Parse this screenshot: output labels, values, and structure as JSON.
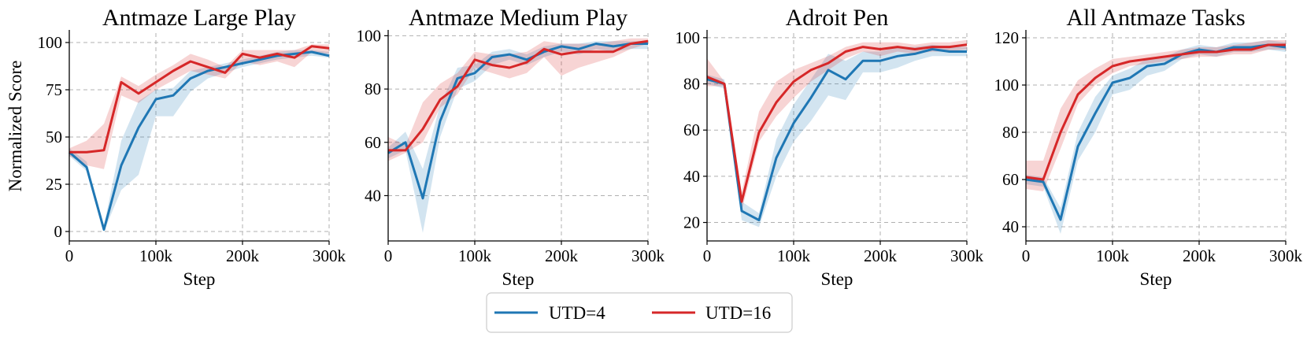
{
  "figure": {
    "ylabel": "Normalized Score",
    "legend": {
      "placement": "bottom-center",
      "items": [
        {
          "name": "UTD=4",
          "color": "#1f77b4"
        },
        {
          "name": "UTD=16",
          "color": "#d62728"
        }
      ]
    }
  },
  "chart_data": [
    {
      "type": "line",
      "title": "Antmaze Large Play",
      "xlabel": "Step",
      "ylabel": "Normalized Score",
      "xlim": [
        0,
        300000
      ],
      "ylim": [
        -5,
        105
      ],
      "xticks": [
        0,
        100000,
        200000,
        300000
      ],
      "xtick_labels": [
        "0",
        "100k",
        "200k",
        "300k"
      ],
      "yticks": [
        0,
        25,
        50,
        75,
        100
      ],
      "ytick_labels": [
        "0",
        "25",
        "50",
        "75",
        "100"
      ],
      "grid": true,
      "x": [
        0,
        20000,
        40000,
        60000,
        80000,
        100000,
        120000,
        140000,
        160000,
        180000,
        200000,
        220000,
        240000,
        260000,
        280000,
        300000
      ],
      "series": [
        {
          "name": "UTD=4",
          "color": "#1f77b4",
          "values": [
            42,
            34,
            1,
            35,
            55,
            70,
            72,
            81,
            85,
            87,
            89,
            91,
            93,
            94,
            95,
            93
          ],
          "lower": [
            40,
            32,
            0,
            22,
            30,
            61,
            61,
            74,
            81,
            84,
            87,
            89,
            91,
            92,
            93,
            92
          ],
          "upper": [
            44,
            37,
            3,
            48,
            69,
            75,
            76,
            85,
            87,
            89,
            91,
            93,
            95,
            96,
            96,
            95
          ]
        },
        {
          "name": "UTD=16",
          "color": "#d62728",
          "values": [
            42,
            42,
            43,
            79,
            73,
            79,
            85,
            90,
            87,
            84,
            94,
            92,
            94,
            92,
            98,
            97
          ],
          "lower": [
            40,
            35,
            33,
            72,
            68,
            75,
            80,
            85,
            83,
            81,
            90,
            88,
            90,
            87,
            95,
            94
          ],
          "upper": [
            44,
            48,
            57,
            82,
            77,
            83,
            88,
            94,
            91,
            87,
            96,
            96,
            96,
            96,
            99,
            99
          ]
        }
      ]
    },
    {
      "type": "line",
      "title": "Antmaze Medium Play",
      "xlabel": "Step",
      "ylabel": "",
      "xlim": [
        0,
        300000
      ],
      "ylim": [
        23,
        101
      ],
      "xticks": [
        0,
        100000,
        200000,
        300000
      ],
      "xtick_labels": [
        "0",
        "100k",
        "200k",
        "300k"
      ],
      "yticks": [
        40,
        60,
        80,
        100
      ],
      "ytick_labels": [
        "40",
        "60",
        "80",
        "100"
      ],
      "grid": true,
      "x": [
        0,
        20000,
        40000,
        60000,
        80000,
        100000,
        120000,
        140000,
        160000,
        180000,
        200000,
        220000,
        240000,
        260000,
        280000,
        300000
      ],
      "series": [
        {
          "name": "UTD=4",
          "color": "#1f77b4",
          "values": [
            56,
            60,
            39,
            68,
            84,
            86,
            92,
            93,
            91,
            94,
            96,
            95,
            97,
            96,
            97,
            97
          ],
          "lower": [
            54,
            57,
            26,
            62,
            80,
            83,
            89,
            91,
            89,
            92,
            94,
            93,
            95,
            94,
            95,
            95
          ],
          "upper": [
            58,
            64,
            50,
            74,
            88,
            89,
            94,
            95,
            93,
            96,
            97,
            97,
            98,
            98,
            98,
            98
          ]
        },
        {
          "name": "UTD=16",
          "color": "#d62728",
          "values": [
            57,
            57,
            65,
            76,
            81,
            91,
            89,
            88,
            90,
            95,
            93,
            94,
            94,
            94,
            97,
            98
          ],
          "lower": [
            53,
            56,
            60,
            73,
            78,
            88,
            86,
            84,
            86,
            92,
            85,
            88,
            90,
            92,
            95,
            97
          ],
          "upper": [
            62,
            59,
            75,
            82,
            86,
            94,
            93,
            93,
            94,
            98,
            97,
            97,
            97,
            98,
            99,
            99
          ]
        }
      ]
    },
    {
      "type": "line",
      "title": "Adroit Pen",
      "xlabel": "Step",
      "ylabel": "",
      "xlim": [
        0,
        300000
      ],
      "ylim": [
        12,
        102
      ],
      "xticks": [
        0,
        100000,
        200000,
        300000
      ],
      "xtick_labels": [
        "0",
        "100k",
        "200k",
        "300k"
      ],
      "yticks": [
        20,
        40,
        60,
        80,
        100
      ],
      "ytick_labels": [
        "20",
        "40",
        "60",
        "80",
        "100"
      ],
      "grid": true,
      "x": [
        0,
        20000,
        40000,
        60000,
        80000,
        100000,
        120000,
        140000,
        160000,
        180000,
        200000,
        220000,
        240000,
        260000,
        280000,
        300000
      ],
      "series": [
        {
          "name": "UTD=4",
          "color": "#1f77b4",
          "values": [
            82,
            80,
            25,
            21,
            48,
            63,
            74,
            86,
            82,
            90,
            90,
            92,
            93,
            95,
            94,
            94
          ],
          "lower": [
            80,
            78,
            21,
            18,
            40,
            55,
            64,
            75,
            73,
            85,
            85,
            87,
            90,
            92,
            92,
            92
          ],
          "upper": [
            84,
            82,
            29,
            24,
            56,
            71,
            82,
            93,
            90,
            94,
            94,
            96,
            96,
            97,
            96,
            96
          ]
        },
        {
          "name": "UTD=16",
          "color": "#d62728",
          "values": [
            83,
            80,
            29,
            59,
            72,
            81,
            86,
            89,
            94,
            96,
            95,
            96,
            95,
            96,
            96,
            97
          ],
          "lower": [
            79,
            79,
            25,
            55,
            66,
            74,
            81,
            86,
            91,
            94,
            92,
            94,
            93,
            94,
            94,
            95
          ],
          "upper": [
            91,
            81,
            33,
            68,
            81,
            86,
            89,
            92,
            96,
            98,
            98,
            98,
            97,
            98,
            98,
            99
          ]
        }
      ]
    },
    {
      "type": "line",
      "title": "All Antmaze Tasks",
      "xlabel": "Step",
      "ylabel": "",
      "xlim": [
        0,
        300000
      ],
      "ylim": [
        34,
        122
      ],
      "xticks": [
        0,
        100000,
        200000,
        300000
      ],
      "xtick_labels": [
        "0",
        "100k",
        "200k",
        "300k"
      ],
      "yticks": [
        40,
        60,
        80,
        100,
        120
      ],
      "ytick_labels": [
        "40",
        "60",
        "80",
        "100",
        "120"
      ],
      "grid": true,
      "x": [
        0,
        20000,
        40000,
        60000,
        80000,
        100000,
        120000,
        140000,
        160000,
        180000,
        200000,
        220000,
        240000,
        260000,
        280000,
        300000
      ],
      "series": [
        {
          "name": "UTD=4",
          "color": "#1f77b4",
          "values": [
            60,
            59,
            43,
            74,
            88,
            101,
            103,
            108,
            109,
            113,
            115,
            114,
            116,
            116,
            117,
            116
          ],
          "lower": [
            58,
            57,
            37,
            68,
            80,
            96,
            98,
            104,
            106,
            111,
            113,
            112,
            114,
            114,
            115,
            114
          ],
          "upper": [
            62,
            61,
            48,
            80,
            95,
            104,
            107,
            111,
            112,
            115,
            117,
            116,
            118,
            118,
            119,
            118
          ]
        },
        {
          "name": "UTD=16",
          "color": "#d62728",
          "values": [
            61,
            60,
            80,
            96,
            103,
            108,
            110,
            111,
            112,
            113,
            114,
            114,
            115,
            115,
            117,
            117
          ],
          "lower": [
            56,
            55,
            73,
            92,
            100,
            105,
            108,
            109,
            110,
            111,
            112,
            112,
            113,
            113,
            115,
            115
          ],
          "upper": [
            68,
            68,
            90,
            102,
            107,
            111,
            112,
            113,
            114,
            115,
            116,
            116,
            117,
            118,
            119,
            119
          ]
        }
      ]
    }
  ]
}
